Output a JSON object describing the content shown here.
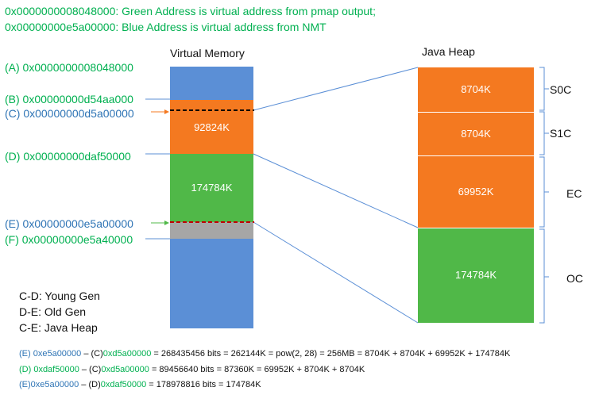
{
  "header": {
    "line1": "0x0000000008048000: Green Address is virtual address from pmap output;",
    "line2": "0x00000000e5a00000: Blue Address is virtual address from NMT"
  },
  "virtual_memory": {
    "title": "Virtual Memory",
    "young_size": "92824K",
    "old_size": "174784K",
    "colors": {
      "blue": "#5b8fd6",
      "orange": "#f47920",
      "green": "#50b848",
      "gray": "#a6a6a6"
    }
  },
  "addresses": [
    {
      "text": "(A) 0x0000000008048000",
      "color": "green"
    },
    {
      "text": "(B) 0x00000000d54aa000",
      "color": "green"
    },
    {
      "text": "(C) 0x00000000d5a00000",
      "color": "blue"
    },
    {
      "text": "(D) 0x00000000daf50000",
      "color": "green"
    },
    {
      "text": "(E) 0x00000000e5a00000",
      "color": "blue"
    },
    {
      "text": "(F) 0x00000000e5a40000",
      "color": "green"
    }
  ],
  "java_heap": {
    "title": "Java Heap",
    "segments": [
      {
        "size": "8704K",
        "label": "S0C"
      },
      {
        "size": "8704K",
        "label": "S1C"
      },
      {
        "size": "69952K",
        "label": "EC"
      },
      {
        "size": "174784K",
        "label": "OC"
      }
    ]
  },
  "legend": {
    "line1": "C-D: Young Gen",
    "line2": "D-E: Old Gen",
    "line3": "C-E: Java Heap"
  },
  "formulas": {
    "f1_e": "(E) 0xe5a00000",
    "f1_dash": " – (C)",
    "f1_c": "0xd5a00000",
    "f1_rest": " = 268435456 bits = 262144K = pow(2, 28) = 256MB = 8704K + 8704K + 69952K + 174784K",
    "f2_d": "(D) 0xdaf50000",
    "f2_dash": " – (C)",
    "f2_c": "0xd5a00000",
    "f2_rest": " = 89456640 bits = 87360K  = 69952K + 8704K + 8704K",
    "f3_e": "(E)0xe5a00000",
    "f3_dash": " – (D)",
    "f3_d": "0xdaf50000",
    "f3_rest": " = 178978816 bits = 174784K"
  }
}
